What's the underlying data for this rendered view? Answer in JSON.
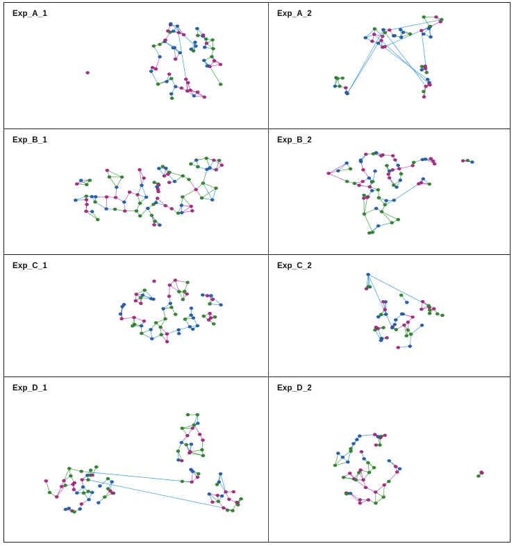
{
  "panels": [
    {
      "label": "Exp_A_1"
    },
    {
      "label": "Exp_A_2"
    },
    {
      "label": "Exp_B_1"
    },
    {
      "label": "Exp_B_2"
    },
    {
      "label": "Exp_C_1"
    },
    {
      "label": "Exp_C_2"
    },
    {
      "label": "Exp_D_1"
    },
    {
      "label": "Exp_D_2"
    }
  ],
  "colors": {
    "green": "#2e8b2e",
    "blue": "#1f63b8",
    "magenta": "#b5268a",
    "edge_green": "#3fa03f",
    "edge_blue": "#3a9ad9",
    "edge_magenta": "#b24fbf"
  }
}
